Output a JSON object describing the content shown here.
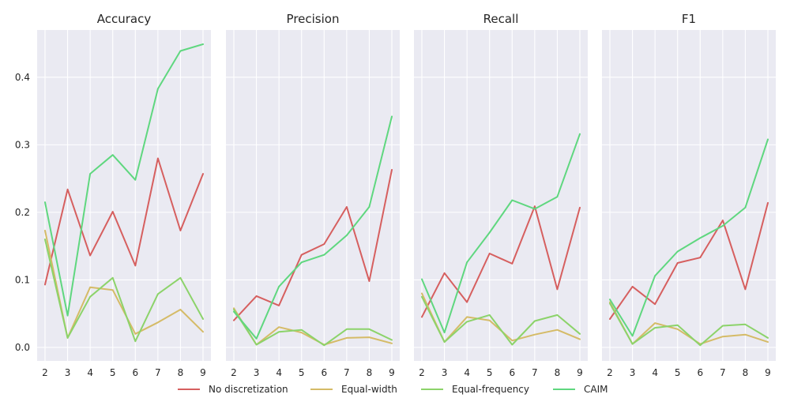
{
  "chart_data": [
    {
      "type": "line",
      "title": "Accuracy",
      "x": [
        2,
        3,
        4,
        5,
        6,
        7,
        8,
        9
      ],
      "series": [
        {
          "name": "No discretization",
          "values": [
            0.093,
            0.234,
            0.136,
            0.201,
            0.121,
            0.28,
            0.173,
            0.257
          ]
        },
        {
          "name": "Equal-width",
          "values": [
            0.173,
            0.014,
            0.089,
            0.085,
            0.02,
            0.037,
            0.056,
            0.023
          ]
        },
        {
          "name": "Equal-frequency",
          "values": [
            0.16,
            0.014,
            0.075,
            0.103,
            0.009,
            0.079,
            0.103,
            0.042
          ]
        },
        {
          "name": "CAIM",
          "values": [
            0.215,
            0.047,
            0.257,
            0.285,
            0.248,
            0.383,
            0.439,
            0.449
          ]
        }
      ],
      "ylim": [
        -0.02,
        0.47
      ],
      "yticks": [
        "0.0",
        "0.1",
        "0.2",
        "0.3",
        "0.4"
      ],
      "show_y_ticks": true
    },
    {
      "type": "line",
      "title": "Precision",
      "x": [
        2,
        3,
        4,
        5,
        6,
        7,
        8,
        9
      ],
      "series": [
        {
          "name": "No discretization",
          "values": [
            0.04,
            0.076,
            0.062,
            0.137,
            0.153,
            0.208,
            0.098,
            0.263
          ]
        },
        {
          "name": "Equal-width",
          "values": [
            0.058,
            0.004,
            0.03,
            0.022,
            0.004,
            0.014,
            0.015,
            0.006
          ]
        },
        {
          "name": "Equal-frequency",
          "values": [
            0.056,
            0.004,
            0.023,
            0.026,
            0.003,
            0.027,
            0.027,
            0.011
          ]
        },
        {
          "name": "CAIM",
          "values": [
            0.053,
            0.013,
            0.09,
            0.126,
            0.137,
            0.166,
            0.208,
            0.342
          ]
        }
      ],
      "ylim": [
        -0.02,
        0.47
      ],
      "yticks": [],
      "show_y_ticks": false
    },
    {
      "type": "line",
      "title": "Recall",
      "x": [
        2,
        3,
        4,
        5,
        6,
        7,
        8,
        9
      ],
      "series": [
        {
          "name": "No discretization",
          "values": [
            0.045,
            0.11,
            0.067,
            0.139,
            0.124,
            0.209,
            0.086,
            0.207
          ]
        },
        {
          "name": "Equal-width",
          "values": [
            0.08,
            0.008,
            0.045,
            0.04,
            0.01,
            0.019,
            0.026,
            0.012
          ]
        },
        {
          "name": "Equal-frequency",
          "values": [
            0.075,
            0.008,
            0.038,
            0.048,
            0.004,
            0.039,
            0.048,
            0.02
          ]
        },
        {
          "name": "CAIM",
          "values": [
            0.101,
            0.022,
            0.126,
            0.17,
            0.218,
            0.205,
            0.223,
            0.316
          ]
        }
      ],
      "ylim": [
        -0.02,
        0.47
      ],
      "yticks": [],
      "show_y_ticks": false
    },
    {
      "type": "line",
      "title": "F1",
      "x": [
        2,
        3,
        4,
        5,
        6,
        7,
        8,
        9
      ],
      "series": [
        {
          "name": "No discretization",
          "values": [
            0.042,
            0.09,
            0.064,
            0.125,
            0.133,
            0.188,
            0.086,
            0.214
          ]
        },
        {
          "name": "Equal-width",
          "values": [
            0.067,
            0.005,
            0.036,
            0.027,
            0.005,
            0.016,
            0.019,
            0.008
          ]
        },
        {
          "name": "Equal-frequency",
          "values": [
            0.065,
            0.005,
            0.029,
            0.033,
            0.003,
            0.032,
            0.034,
            0.014
          ]
        },
        {
          "name": "CAIM",
          "values": [
            0.071,
            0.017,
            0.106,
            0.142,
            0.162,
            0.18,
            0.207,
            0.308
          ]
        }
      ],
      "ylim": [
        -0.02,
        0.47
      ],
      "yticks": [],
      "show_y_ticks": false
    }
  ],
  "legend": {
    "position": "bottom-center",
    "entries": [
      {
        "label": "No discretization",
        "color": "#d65f5f"
      },
      {
        "label": "Equal-width",
        "color": "#d5bb67"
      },
      {
        "label": "Equal-frequency",
        "color": "#8cd36a"
      },
      {
        "label": "CAIM",
        "color": "#5fd77f"
      }
    ]
  },
  "style": {
    "panel_background": "#eaeaf2",
    "grid_color": "#ffffff",
    "grid": true
  }
}
